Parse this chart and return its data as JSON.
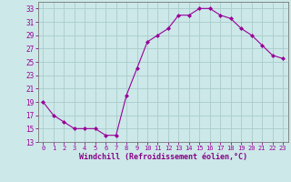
{
  "x": [
    0,
    1,
    2,
    3,
    4,
    5,
    6,
    7,
    8,
    9,
    10,
    11,
    12,
    13,
    14,
    15,
    16,
    17,
    18,
    19,
    20,
    21,
    22,
    23
  ],
  "y": [
    19,
    17,
    16,
    15,
    15,
    15,
    14,
    14,
    20,
    24,
    28,
    29,
    30,
    32,
    32,
    33,
    33,
    32,
    31.5,
    30,
    29,
    27.5,
    26,
    25.5
  ],
  "line_color": "#990099",
  "marker": "D",
  "marker_size": 2.0,
  "bg_color": "#cce8e8",
  "grid_color": "#aacccc",
  "ylabel_ticks": [
    13,
    15,
    17,
    19,
    21,
    23,
    25,
    27,
    29,
    31,
    33
  ],
  "xlabel": "Windchill (Refroidissement éolien,°C)",
  "xlabel_color": "#880088",
  "xlim": [
    -0.5,
    23.5
  ],
  "ylim": [
    13,
    34
  ],
  "figsize": [
    3.2,
    2.0
  ],
  "dpi": 100
}
